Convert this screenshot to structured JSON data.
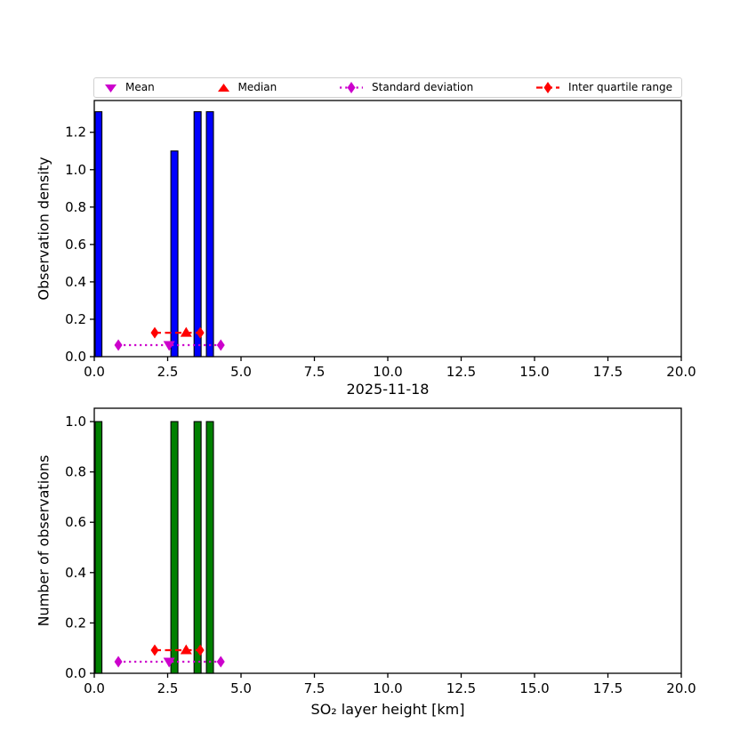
{
  "figure": {
    "title": "2025-11-18",
    "xlabel": "SO₂ layer height [km]",
    "legend": [
      {
        "label": "Mean",
        "marker": "triangle-down",
        "color_key": "magenta"
      },
      {
        "label": "Median",
        "marker": "triangle-up",
        "color_key": "red"
      },
      {
        "label": "Standard deviation",
        "marker": "thin-diamond-dotted-line",
        "color_key": "magenta"
      },
      {
        "label": "Inter quartile range",
        "marker": "thin-diamond-dashed-line",
        "color_key": "red"
      }
    ]
  },
  "colors": {
    "magenta": "#cc00cc",
    "red": "#ff0000",
    "blue": "#0000ff",
    "green": "#008000",
    "bar_edge": "#000000",
    "axis": "#000000"
  },
  "chart_data": [
    {
      "type": "bar",
      "title": "",
      "xlabel": "",
      "ylabel": "Observation density",
      "xlim": [
        0,
        20
      ],
      "ylim": [
        0,
        1.37
      ],
      "xticks": [
        0.0,
        2.5,
        5.0,
        7.5,
        10.0,
        12.5,
        15.0,
        17.5,
        20.0
      ],
      "yticks": [
        0.0,
        0.2,
        0.4,
        0.6,
        0.8,
        1.0,
        1.2
      ],
      "grid": false,
      "bar_color_key": "blue",
      "bars": [
        {
          "x0": 0.03,
          "width": 0.23,
          "height": 1.31
        },
        {
          "x0": 2.61,
          "width": 0.24,
          "height": 1.1
        },
        {
          "x0": 3.4,
          "width": 0.24,
          "height": 1.31
        },
        {
          "x0": 3.82,
          "width": 0.24,
          "height": 1.31
        }
      ],
      "stats": {
        "mean": {
          "x": 2.55,
          "y": 0.062
        },
        "median": {
          "x": 3.13,
          "y": 0.128
        },
        "std": {
          "x1": 0.82,
          "x2": 4.31,
          "y": 0.062
        },
        "iqr": {
          "x1": 2.06,
          "x2": 3.61,
          "y": 0.128
        }
      }
    },
    {
      "type": "bar",
      "title": "2025-11-18",
      "xlabel": "SO₂ layer height [km]",
      "ylabel": "Number of observations",
      "xlim": [
        0,
        20
      ],
      "ylim": [
        0,
        1.053
      ],
      "xticks": [
        0.0,
        2.5,
        5.0,
        7.5,
        10.0,
        12.5,
        15.0,
        17.5,
        20.0
      ],
      "yticks": [
        0.0,
        0.2,
        0.4,
        0.6,
        0.8,
        1.0
      ],
      "grid": false,
      "bar_color_key": "green",
      "bars": [
        {
          "x0": 0.03,
          "width": 0.23,
          "height": 1.0
        },
        {
          "x0": 2.61,
          "width": 0.24,
          "height": 1.0
        },
        {
          "x0": 3.4,
          "width": 0.24,
          "height": 1.0
        },
        {
          "x0": 3.82,
          "width": 0.24,
          "height": 1.0
        }
      ],
      "stats": {
        "mean": {
          "x": 2.55,
          "y": 0.046
        },
        "median": {
          "x": 3.13,
          "y": 0.092
        },
        "std": {
          "x1": 0.82,
          "x2": 4.31,
          "y": 0.046
        },
        "iqr": {
          "x1": 2.06,
          "x2": 3.61,
          "y": 0.092
        }
      }
    }
  ]
}
